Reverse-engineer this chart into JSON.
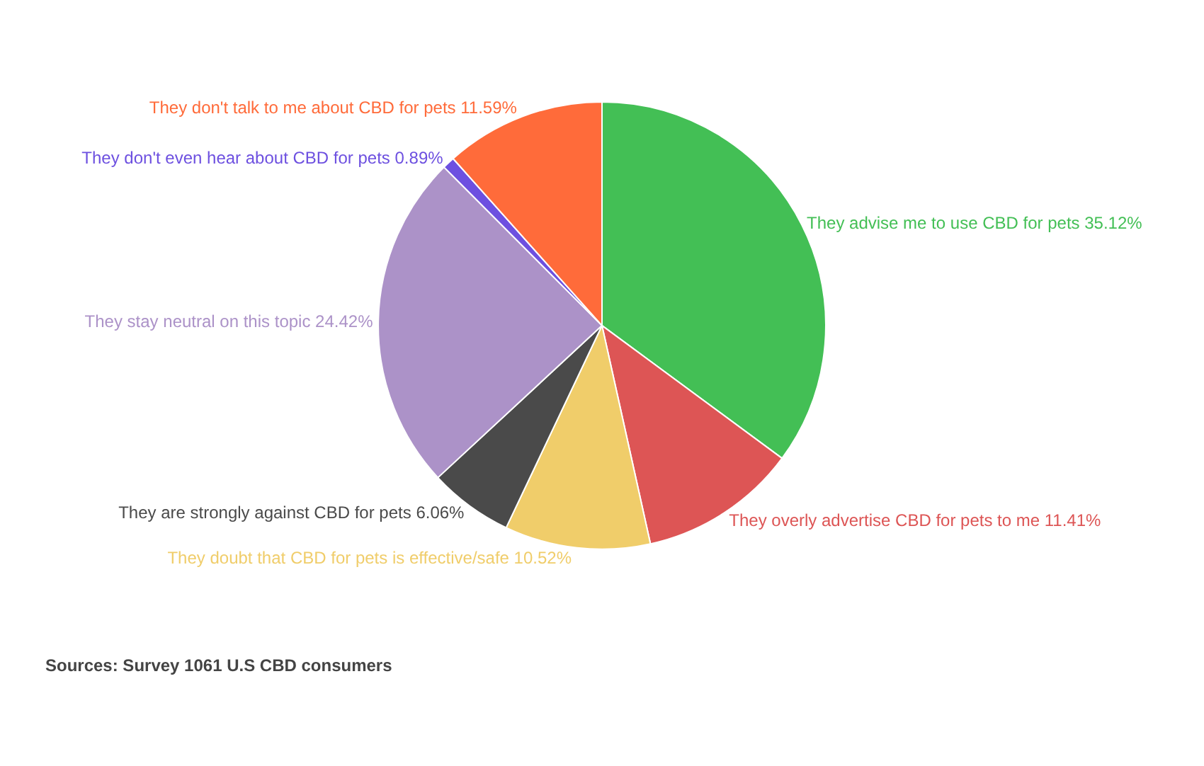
{
  "chart_data": {
    "type": "pie",
    "categories": [
      "They advise me to use CBD for pets",
      "They overly advertise CBD for pets to me",
      "They doubt that CBD for pets is effective/safe",
      "They are strongly against CBD for pets",
      "They stay neutral on this topic",
      "They don't even hear about CBD for pets",
      "They don't talk to me about CBD for pets"
    ],
    "values": [
      35.12,
      11.41,
      10.52,
      6.06,
      24.42,
      0.89,
      11.59
    ],
    "value_labels": [
      "35.12%",
      "11.41%",
      "10.52%",
      "6.06%",
      "24.42%",
      "0.89%",
      "11.59%"
    ],
    "colors": [
      "#43bf55",
      "#dd5555",
      "#f0cd6a",
      "#4a4a4a",
      "#ac92c8",
      "#6d50e0",
      "#ff6b3a"
    ],
    "annotations": [
      "Sources: Survey 1061 U.S CBD consumers"
    ]
  }
}
